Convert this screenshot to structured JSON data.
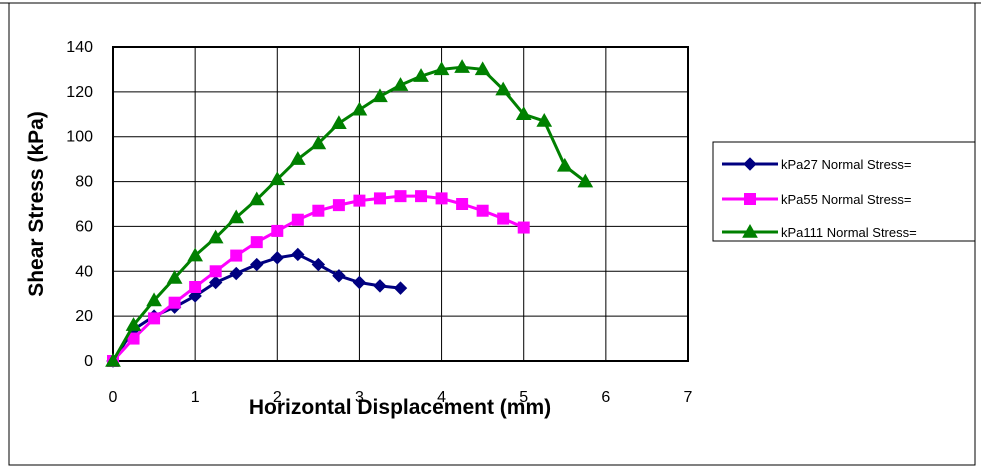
{
  "chart_data": {
    "type": "line",
    "title": "",
    "xlabel": "Horizontal Displacement (mm)",
    "ylabel": "Shear Stress (kPa)",
    "xlim": [
      0,
      7
    ],
    "ylim": [
      0,
      140
    ],
    "xticks": [
      0,
      1,
      2,
      3,
      4,
      5,
      6,
      7
    ],
    "yticks": [
      0,
      20,
      40,
      60,
      80,
      100,
      120,
      140
    ],
    "grid": true,
    "legend_position": "right",
    "series": [
      {
        "name": "kPa27 Normal Stress=",
        "color": "#000080",
        "marker": "diamond",
        "x": [
          0,
          0.25,
          0.5,
          0.75,
          1.0,
          1.25,
          1.5,
          1.75,
          2.0,
          2.25,
          2.5,
          2.75,
          3.0,
          3.25,
          3.5
        ],
        "y": [
          0,
          14,
          20,
          24,
          29,
          35,
          39,
          43,
          46,
          47.5,
          43,
          38,
          35,
          33.5,
          32.5
        ]
      },
      {
        "name": "kPa55 Normal Stress=",
        "color": "#FF00FF",
        "marker": "square",
        "x": [
          0,
          0.25,
          0.5,
          0.75,
          1.0,
          1.25,
          1.5,
          1.75,
          2.0,
          2.25,
          2.5,
          2.75,
          3.0,
          3.25,
          3.5,
          3.75,
          4.0,
          4.25,
          4.5,
          4.75,
          5.0
        ],
        "y": [
          0,
          10,
          19,
          26,
          33,
          40,
          47,
          53,
          58,
          63,
          67,
          69.5,
          71.5,
          72.5,
          73.5,
          73.5,
          72.5,
          70,
          67,
          63.5,
          59.5
        ]
      },
      {
        "name": "kPa111 Normal Stress=",
        "color": "#008000",
        "marker": "triangle",
        "x": [
          0,
          0.25,
          0.5,
          0.75,
          1.0,
          1.25,
          1.5,
          1.75,
          2.0,
          2.25,
          2.5,
          2.75,
          3.0,
          3.25,
          3.5,
          3.75,
          4.0,
          4.25,
          4.5,
          4.75,
          5.0,
          5.25,
          5.5,
          5.75
        ],
        "y": [
          0,
          16,
          27,
          37,
          47,
          55,
          64,
          72,
          81,
          90,
          97,
          106,
          112,
          118,
          123,
          127,
          130,
          131,
          130,
          121,
          110,
          107,
          87,
          80
        ]
      }
    ]
  }
}
